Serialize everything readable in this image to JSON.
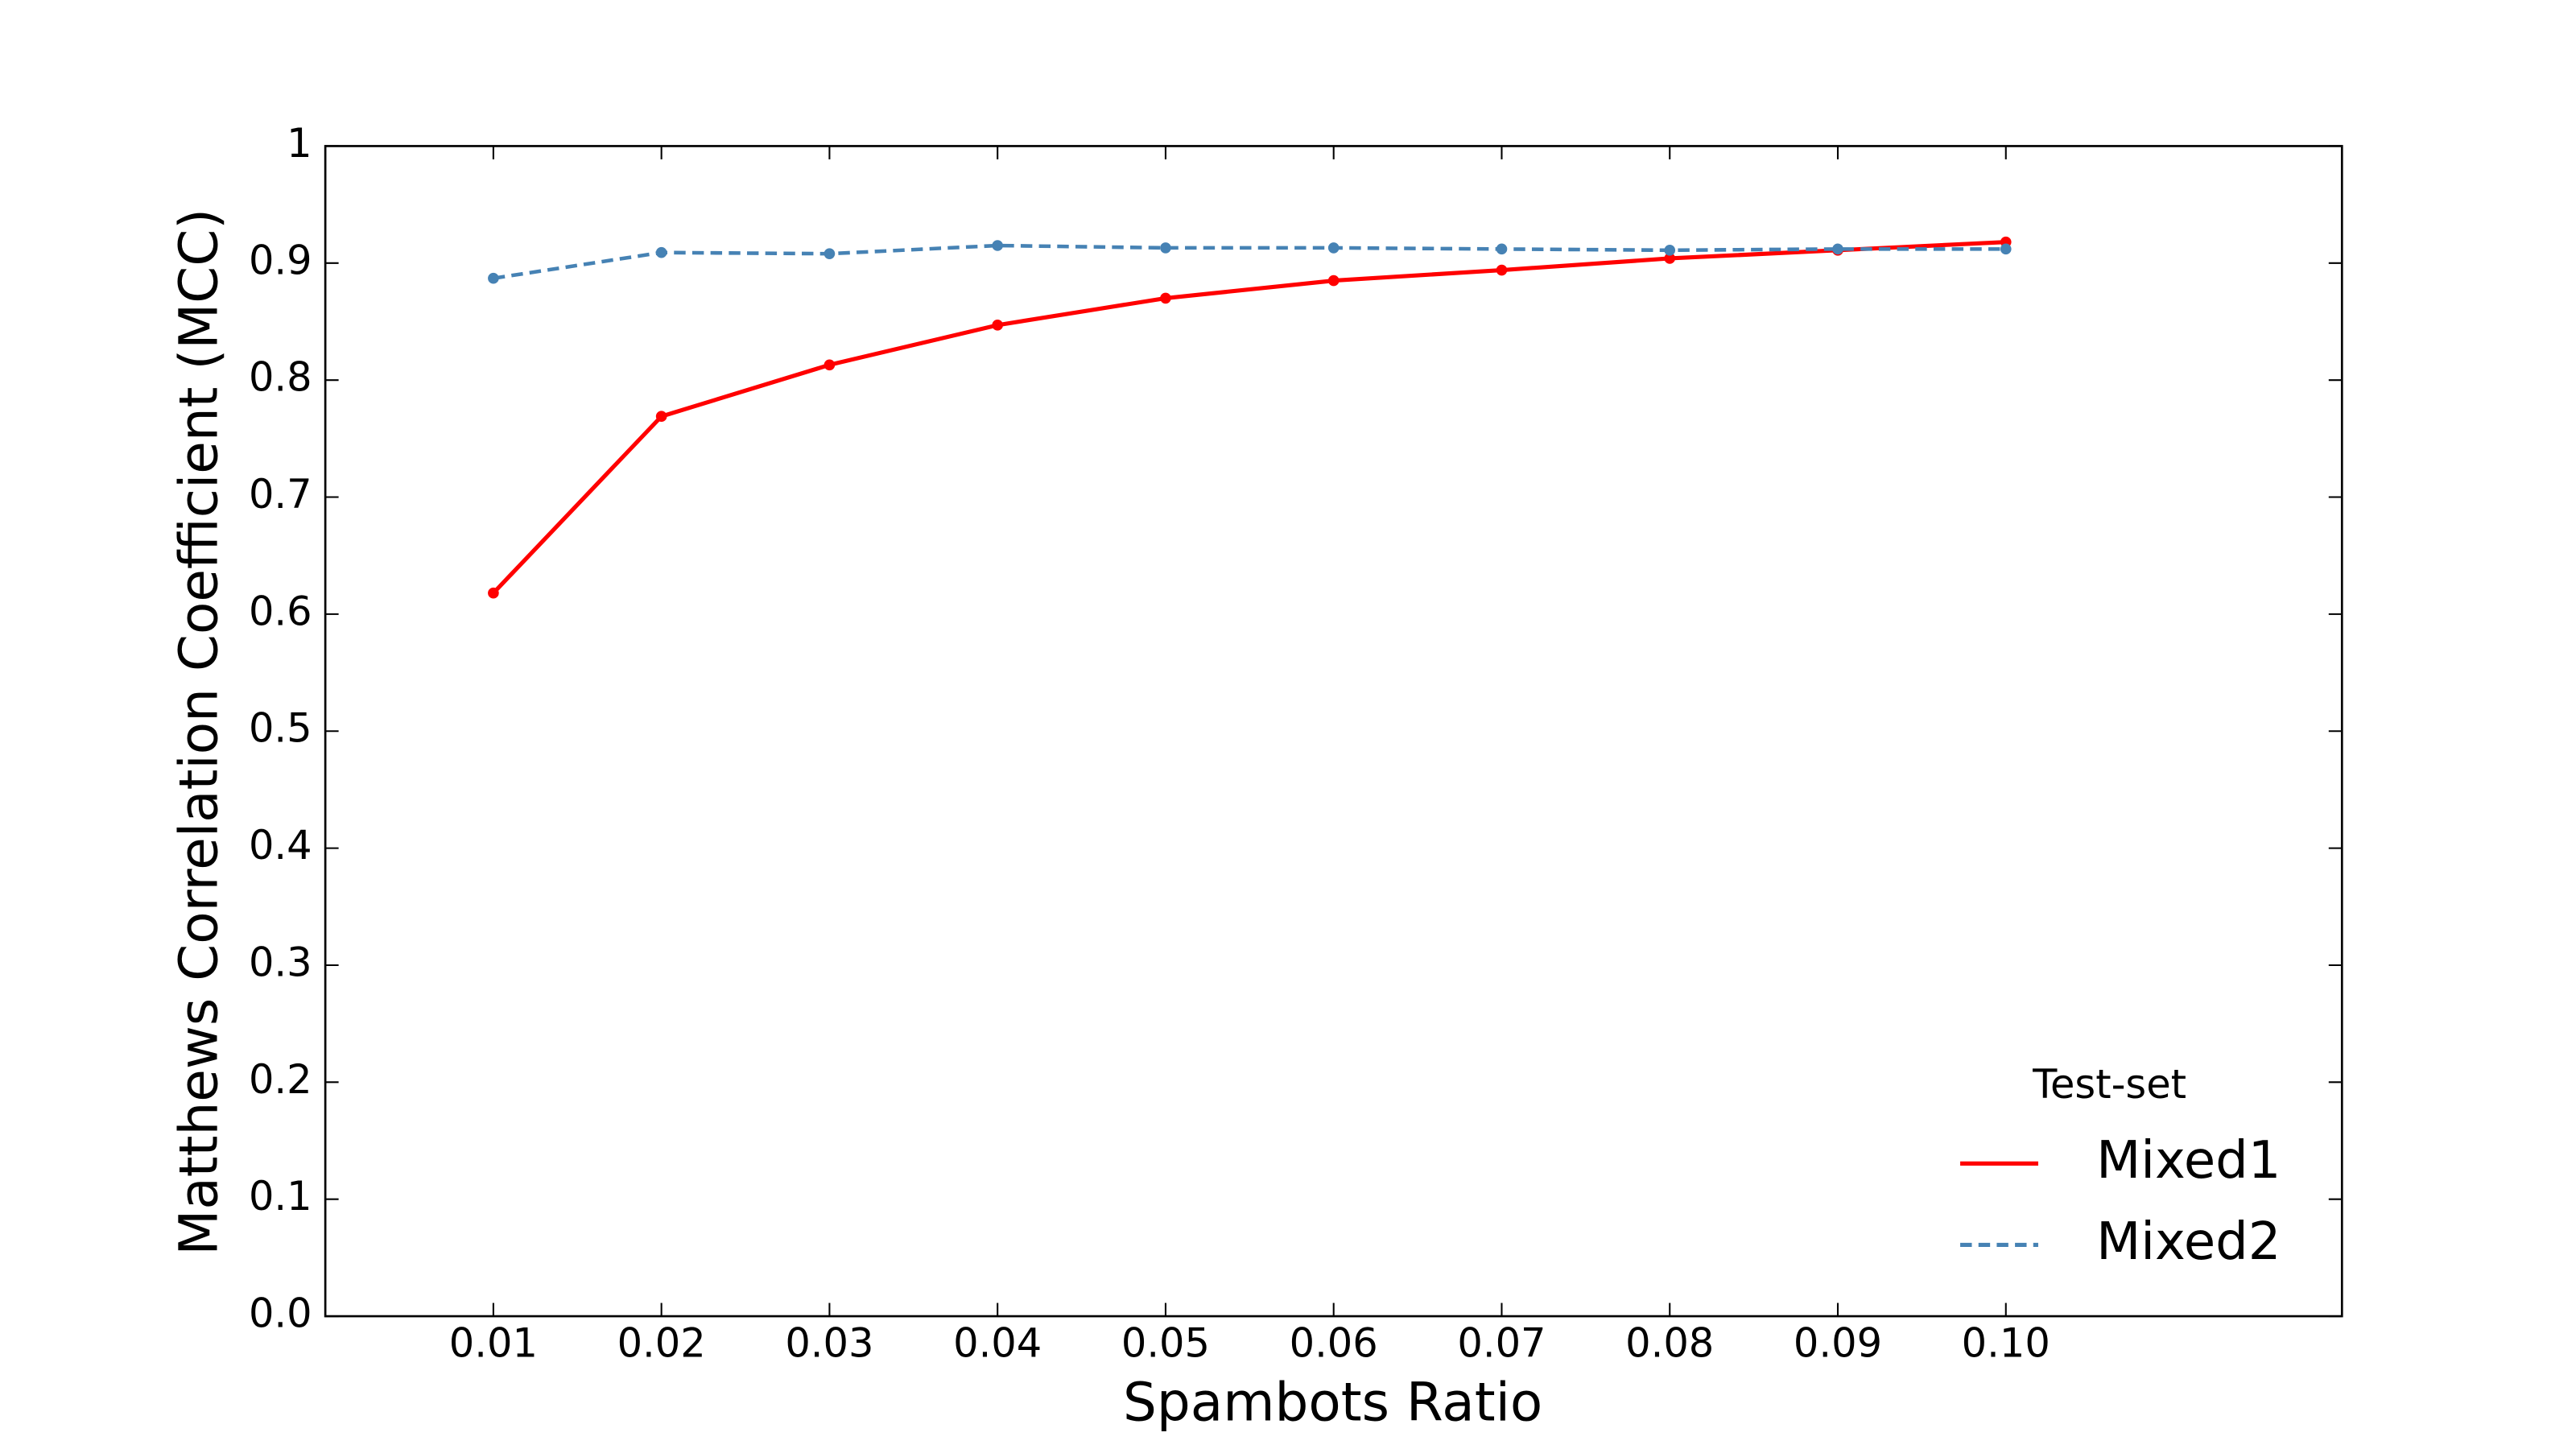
{
  "chart_data": {
    "type": "line",
    "x": [
      0.01,
      0.02,
      0.03,
      0.04,
      0.05,
      0.06,
      0.07,
      0.08,
      0.09,
      0.1
    ],
    "series": [
      {
        "name": "Mixed1",
        "color": "#ff0000",
        "dash": false,
        "values": [
          0.618,
          0.769,
          0.813,
          0.847,
          0.87,
          0.885,
          0.894,
          0.904,
          0.911,
          0.918
        ]
      },
      {
        "name": "Mixed2",
        "color": "#4682b4",
        "dash": true,
        "values": [
          0.887,
          0.909,
          0.908,
          0.915,
          0.913,
          0.913,
          0.912,
          0.911,
          0.912,
          0.912
        ]
      }
    ],
    "xlabel": "Spambots Ratio",
    "ylabel": "Matthews Correlation Coefficient (MCC)",
    "xlim": [
      0,
      0.12
    ],
    "ylim": [
      0,
      1
    ],
    "xticks": [
      0.01,
      0.02,
      0.03,
      0.04,
      0.05,
      0.06,
      0.07,
      0.08,
      0.09,
      {
        "value": 0.1,
        "label": "0.10"
      }
    ],
    "yticks": [
      {
        "value": 0,
        "label": "0.0"
      },
      0.1,
      0.2,
      0.3,
      0.4,
      0.5,
      0.6,
      0.7,
      0.8,
      0.9,
      1
    ],
    "legend_title": "Test-set",
    "legend_position": "lower right",
    "grid": false
  }
}
